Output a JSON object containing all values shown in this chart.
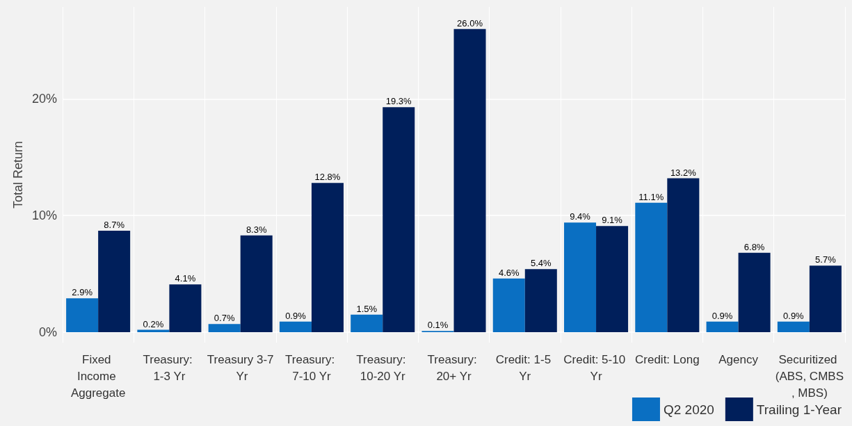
{
  "chart_data": {
    "type": "bar",
    "ylabel": "Total Return",
    "categories": [
      "Fixed Income Aggregate",
      "Treasury: 1-3 Yr",
      "Treasury 3-7 Yr",
      "Treasury: 7-10 Yr",
      "Treasury: 10-20 Yr",
      "Treasury: 20+ Yr",
      "Credit: 1-5 Yr",
      "Credit: 5-10 Yr",
      "Credit: Long",
      "Agency",
      "Securitized (ABS, CMBS, MBS)"
    ],
    "series": [
      {
        "name": "Q2 2020",
        "color": "#0a6fc2",
        "values": [
          2.9,
          0.2,
          0.7,
          0.9,
          1.5,
          0.1,
          4.6,
          9.4,
          11.1,
          0.9,
          0.9
        ],
        "value_labels": [
          "2.9%",
          "0.2%",
          "0.7%",
          "0.9%",
          "1.5%",
          "0.1%",
          "4.6%",
          "9.4%",
          "11.1%",
          "0.9%",
          "0.9%"
        ]
      },
      {
        "name": "Trailing 1-Year",
        "color": "#001f5b",
        "values": [
          8.7,
          4.1,
          8.3,
          12.8,
          19.3,
          26.0,
          5.4,
          9.1,
          13.2,
          6.8,
          5.7
        ],
        "value_labels": [
          "8.7%",
          "4.1%",
          "8.3%",
          "12.8%",
          "19.3%",
          "26.0%",
          "5.4%",
          "9.1%",
          "13.2%",
          "6.8%",
          "5.7%"
        ]
      }
    ],
    "ylim": [
      -0.9,
      27.9
    ],
    "yticks": [
      {
        "value": 0,
        "label": "0%"
      },
      {
        "value": 10,
        "label": "10%"
      },
      {
        "value": 20,
        "label": "20%"
      }
    ],
    "grid": true,
    "legend": "bottom right"
  }
}
